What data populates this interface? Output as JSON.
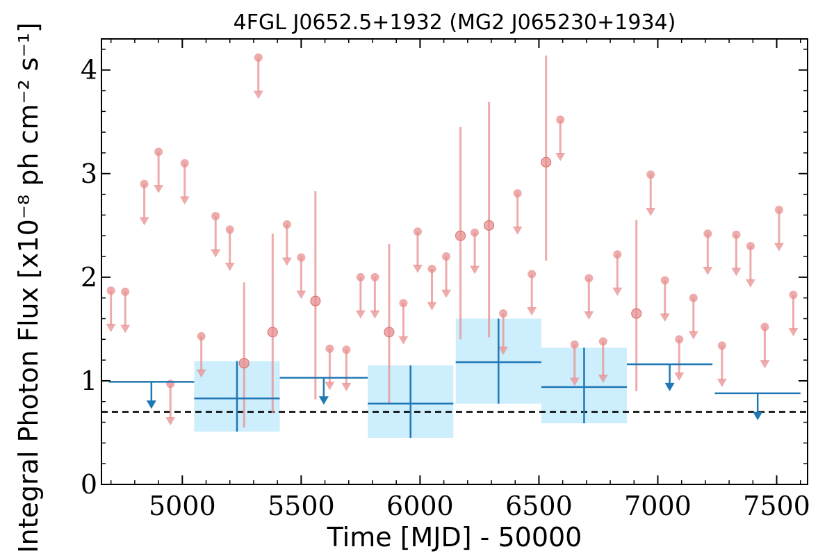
{
  "chart_data": {
    "type": "scatter",
    "title": "4FGL J0652.5+1932 (MG2 J065230+1934)",
    "xlabel": "Time [MJD] - 50000",
    "ylabel": "Integral Photon Flux [x10⁻⁸ ph cm⁻² s⁻¹]",
    "xlim": [
      4660,
      7630
    ],
    "ylim": [
      0,
      4.3
    ],
    "xticks": [
      5000,
      5500,
      6000,
      6500,
      7000,
      7500
    ],
    "yticks": [
      0,
      1,
      2,
      3,
      4
    ],
    "xtick_labels": [
      "5000",
      "5500",
      "6000",
      "6500",
      "7000",
      "7500"
    ],
    "ytick_labels": [
      "0",
      "1",
      "2",
      "3",
      "4"
    ],
    "grid": false,
    "reference_level": 0.7,
    "colors": {
      "short_bins": "#e88f8f",
      "long_bins": "#1f77b4",
      "long_bins_band": "#cdeefc",
      "reference_line": "#000000"
    },
    "series": [
      {
        "points": [
          {
            "x": 5260,
            "y": 1.17,
            "yerr_low": 0.62,
            "yerr_high": 0.78
          },
          {
            "x": 5380,
            "y": 1.47,
            "yerr_low": 0.78,
            "yerr_high": 0.95
          },
          {
            "x": 5560,
            "y": 1.77,
            "yerr_low": 0.95,
            "yerr_high": 1.06
          },
          {
            "x": 5870,
            "y": 1.47,
            "yerr_low": 0.7,
            "yerr_high": 0.85
          },
          {
            "x": 6170,
            "y": 2.4,
            "yerr_low": 1.0,
            "yerr_high": 1.05
          },
          {
            "x": 6290,
            "y": 2.5,
            "yerr_low": 1.08,
            "yerr_high": 1.19
          },
          {
            "x": 6530,
            "y": 3.11,
            "yerr_low": 0.95,
            "yerr_high": 1.03
          },
          {
            "x": 6910,
            "y": 1.65,
            "yerr_low": 0.75,
            "yerr_high": 0.9
          }
        ],
        "upper_limits": [
          {
            "x": 4700,
            "y": 1.87
          },
          {
            "x": 4760,
            "y": 1.86
          },
          {
            "x": 4840,
            "y": 2.9
          },
          {
            "x": 4900,
            "y": 3.21
          },
          {
            "x": 4950,
            "y": 0.97
          },
          {
            "x": 5010,
            "y": 3.1
          },
          {
            "x": 5080,
            "y": 1.43
          },
          {
            "x": 5140,
            "y": 2.59
          },
          {
            "x": 5200,
            "y": 2.46
          },
          {
            "x": 5320,
            "y": 4.12
          },
          {
            "x": 5440,
            "y": 2.51
          },
          {
            "x": 5500,
            "y": 2.19
          },
          {
            "x": 5620,
            "y": 1.31
          },
          {
            "x": 5690,
            "y": 1.3
          },
          {
            "x": 5750,
            "y": 2.0
          },
          {
            "x": 5810,
            "y": 2.0
          },
          {
            "x": 5930,
            "y": 1.75
          },
          {
            "x": 5990,
            "y": 2.44
          },
          {
            "x": 6050,
            "y": 2.08
          },
          {
            "x": 6110,
            "y": 2.2
          },
          {
            "x": 6230,
            "y": 2.43
          },
          {
            "x": 6350,
            "y": 1.65
          },
          {
            "x": 6410,
            "y": 2.81
          },
          {
            "x": 6470,
            "y": 2.03
          },
          {
            "x": 6590,
            "y": 3.52
          },
          {
            "x": 6650,
            "y": 1.35
          },
          {
            "x": 6710,
            "y": 1.99
          },
          {
            "x": 6770,
            "y": 1.38
          },
          {
            "x": 6830,
            "y": 2.22
          },
          {
            "x": 6970,
            "y": 2.99
          },
          {
            "x": 7030,
            "y": 1.97
          },
          {
            "x": 7090,
            "y": 1.4
          },
          {
            "x": 7150,
            "y": 1.8
          },
          {
            "x": 7210,
            "y": 2.42
          },
          {
            "x": 7270,
            "y": 1.34
          },
          {
            "x": 7330,
            "y": 2.41
          },
          {
            "x": 7390,
            "y": 2.3
          },
          {
            "x": 7450,
            "y": 1.52
          },
          {
            "x": 7510,
            "y": 2.65
          },
          {
            "x": 7570,
            "y": 1.83
          }
        ]
      },
      {
        "bins": [
          {
            "x0": 5050,
            "x1": 5410,
            "y": 0.83,
            "y_low": 0.51,
            "y_high": 1.19
          },
          {
            "x0": 5780,
            "x1": 6140,
            "y": 0.78,
            "y_low": 0.45,
            "y_high": 1.15
          },
          {
            "x0": 6150,
            "x1": 6510,
            "y": 1.18,
            "y_low": 0.78,
            "y_high": 1.6
          },
          {
            "x0": 6510,
            "x1": 6870,
            "y": 0.94,
            "y_low": 0.59,
            "y_high": 1.32
          }
        ],
        "upper_limits": [
          {
            "x0": 4690,
            "x1": 5050,
            "y": 0.99
          },
          {
            "x0": 5410,
            "x1": 5780,
            "y": 1.03
          },
          {
            "x0": 6870,
            "x1": 7230,
            "y": 1.16
          },
          {
            "x0": 7240,
            "x1": 7600,
            "y": 0.88
          }
        ]
      }
    ]
  }
}
